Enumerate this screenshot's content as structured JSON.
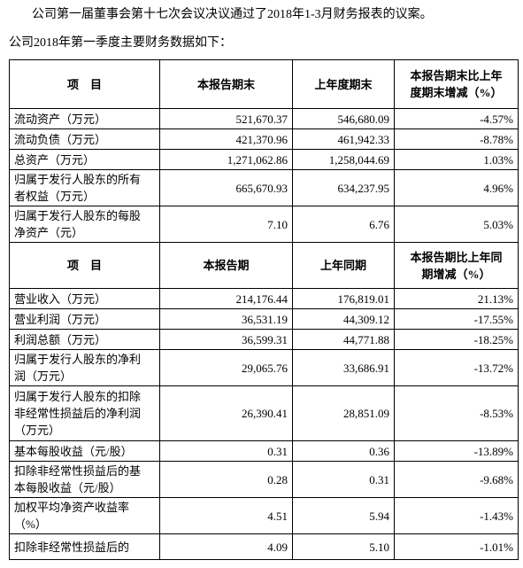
{
  "intro": [
    "公司第一届董事会第十七次会议决议通过了2018年1-3月财务报表的议案。",
    "公司2018年第一季度主要财务数据如下："
  ],
  "table": {
    "sections": [
      {
        "header": [
          "项　目",
          "本报告期末",
          "上年度期末",
          [
            "本报告期末比上年",
            "度期末增减（%）"
          ]
        ],
        "rows": [
          [
            [
              "流动资产（万元）"
            ],
            "521,670.37",
            "546,680.09",
            "-4.57%"
          ],
          [
            [
              "流动负债（万元）"
            ],
            "421,370.96",
            "461,942.33",
            "-8.78%"
          ],
          [
            [
              "总资产（万元）"
            ],
            "1,271,062.86",
            "1,258,044.69",
            "1.03%"
          ],
          [
            [
              "归属于发行人股东的所有",
              "者权益（万元）"
            ],
            "665,670.93",
            "634,237.95",
            "4.96%"
          ],
          [
            [
              "归属于发行人股东的每股",
              "净资产（元）"
            ],
            "7.10",
            "6.76",
            "5.03%"
          ]
        ]
      },
      {
        "header": [
          "项　目",
          "本报告期",
          "上年同期",
          [
            "本报告期比上年同",
            "期增减（%）"
          ]
        ],
        "rows": [
          [
            [
              "营业收入（万元）"
            ],
            "214,176.44",
            "176,819.01",
            "21.13%"
          ],
          [
            [
              "营业利润（万元）"
            ],
            "36,531.19",
            "44,309.12",
            "-17.55%"
          ],
          [
            [
              "利润总额（万元）"
            ],
            "36,599.31",
            "44,771.88",
            "-18.25%"
          ],
          [
            [
              "归属于发行人股东的净利",
              "润（万元）"
            ],
            "29,065.76",
            "33,686.91",
            "-13.72%"
          ],
          [
            [
              "归属于发行人股东的扣除",
              "非经常性损益后的净利润",
              "（万元）"
            ],
            "26,390.41",
            "28,851.09",
            "-8.53%"
          ],
          [
            [
              "基本每股收益（元/股）"
            ],
            "0.31",
            "0.36",
            "-13.89%"
          ],
          [
            [
              "扣除非经常性损益后的基",
              "本每股收益（元/股）"
            ],
            "0.28",
            "0.31",
            "-9.68%"
          ],
          [
            [
              "加权平均净资产收益率",
              "（%）"
            ],
            "4.51",
            "5.94",
            "-1.43%"
          ],
          [
            [
              "扣除非经常性损益后的"
            ],
            "4.09",
            "5.10",
            "-1.01%"
          ]
        ]
      }
    ]
  }
}
